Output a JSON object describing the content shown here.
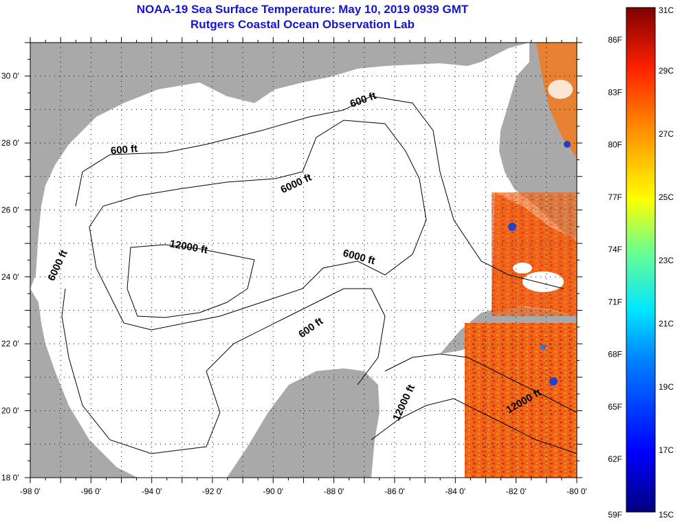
{
  "title": {
    "line1": "NOAA-19 Sea Surface Temperature:  May 10, 2019 0939 GMT",
    "line2": "Rutgers Coastal Ocean Observation Lab"
  },
  "map": {
    "lon_range": [
      -98,
      -80
    ],
    "lat_range": [
      18,
      31
    ],
    "lat_ticks": [
      {
        "value": 30,
        "label": "30 0'"
      },
      {
        "value": 28,
        "label": "28 0'"
      },
      {
        "value": 26,
        "label": "26 0'"
      },
      {
        "value": 24,
        "label": "24 0'"
      },
      {
        "value": 22,
        "label": "22 0'"
      },
      {
        "value": 20,
        "label": "20 0'"
      },
      {
        "value": 18,
        "label": "18 0'"
      }
    ],
    "lon_ticks": [
      {
        "value": -98,
        "label": "-98 0'"
      },
      {
        "value": -96,
        "label": "-96 0'"
      },
      {
        "value": -94,
        "label": "-94 0'"
      },
      {
        "value": -92,
        "label": "-92 0'"
      },
      {
        "value": -90,
        "label": "-90 0'"
      },
      {
        "value": -88,
        "label": "-88 0'"
      },
      {
        "value": -86,
        "label": "-86 0'"
      },
      {
        "value": -84,
        "label": "-84 0'"
      },
      {
        "value": -82,
        "label": "-82 0'"
      },
      {
        "value": -80,
        "label": "-80 0'"
      }
    ],
    "contour_labels": [
      {
        "text": "600 ft",
        "lon": -87.0,
        "lat": 29.2,
        "angle": -20
      },
      {
        "text": "600 ft",
        "lon": -94.9,
        "lat": 27.7,
        "angle": -5
      },
      {
        "text": "6000 ft",
        "lon": -89.2,
        "lat": 26.7,
        "angle": -25
      },
      {
        "text": "12000 ft",
        "lon": -92.8,
        "lat": 24.8,
        "angle": 10
      },
      {
        "text": "6000 ft",
        "lon": -87.2,
        "lat": 24.5,
        "angle": 15
      },
      {
        "text": "6000 ft",
        "lon": -97.0,
        "lat": 24.3,
        "angle": -65
      },
      {
        "text": "600 ft",
        "lon": -88.7,
        "lat": 22.4,
        "angle": -35
      },
      {
        "text": "12000 ft",
        "lon": -85.6,
        "lat": 20.2,
        "angle": -65
      },
      {
        "text": "12000 ft",
        "lon": -81.7,
        "lat": 20.2,
        "angle": -30
      }
    ],
    "colors": {
      "land": "#a9a9a9",
      "water": "#ffffff",
      "sst_hot": "#f05a14",
      "sst_warm": "#e23a1a"
    }
  },
  "colorbar": {
    "fahrenheit": [
      "86F",
      "83F",
      "80F",
      "77F",
      "74F",
      "71F",
      "68F",
      "65F",
      "62F",
      "59F"
    ],
    "celsius": [
      "31C",
      "29C",
      "27C",
      "25C",
      "23C",
      "21C",
      "19C",
      "17C",
      "15C"
    ],
    "range_c": [
      15,
      31
    ]
  }
}
